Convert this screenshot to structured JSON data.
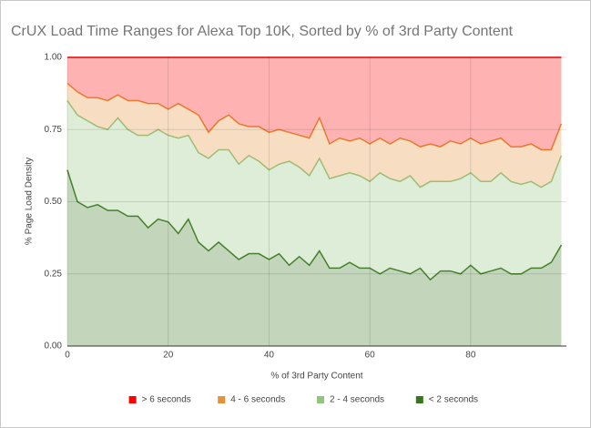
{
  "chart_data": {
    "type": "stacked-area",
    "title": "CrUX Load Time Ranges  for Alexa Top 10K, Sorted by % of 3rd Party Content",
    "x_label": "% of 3rd Party Content",
    "y_label": "% Page Load Density",
    "x": [
      0,
      2,
      4,
      6,
      8,
      10,
      12,
      14,
      16,
      18,
      20,
      22,
      24,
      26,
      28,
      30,
      32,
      34,
      36,
      38,
      40,
      42,
      44,
      46,
      48,
      50,
      52,
      54,
      56,
      58,
      60,
      62,
      64,
      66,
      68,
      70,
      72,
      74,
      76,
      78,
      80,
      82,
      84,
      86,
      88,
      90,
      92,
      94,
      96,
      98
    ],
    "xlim": [
      0,
      99
    ],
    "xticks": [
      0,
      20,
      40,
      60,
      80
    ],
    "ylim": [
      0,
      1
    ],
    "yticks": [
      {
        "value": 0,
        "label": "0.00"
      },
      {
        "value": 0.25,
        "label": "0.25"
      },
      {
        "value": 0.5,
        "label": "0.50"
      },
      {
        "value": 0.75,
        "label": "0.75"
      },
      {
        "value": 1,
        "label": "1.00"
      }
    ],
    "grid": true,
    "legend": "bottom",
    "series": [
      {
        "name": "< 2 seconds",
        "color": "#38761d",
        "values": [
          0.61,
          0.5,
          0.48,
          0.49,
          0.47,
          0.47,
          0.45,
          0.45,
          0.41,
          0.44,
          0.43,
          0.39,
          0.44,
          0.36,
          0.33,
          0.36,
          0.33,
          0.3,
          0.32,
          0.32,
          0.3,
          0.32,
          0.28,
          0.31,
          0.28,
          0.33,
          0.27,
          0.27,
          0.29,
          0.27,
          0.27,
          0.25,
          0.27,
          0.26,
          0.25,
          0.27,
          0.23,
          0.26,
          0.26,
          0.25,
          0.28,
          0.25,
          0.26,
          0.27,
          0.25,
          0.25,
          0.27,
          0.27,
          0.29,
          0.35
        ]
      },
      {
        "name": "2 - 4 seconds",
        "color": "#93c47d",
        "values": [
          0.24,
          0.3,
          0.3,
          0.27,
          0.28,
          0.32,
          0.3,
          0.28,
          0.32,
          0.31,
          0.3,
          0.33,
          0.29,
          0.31,
          0.32,
          0.32,
          0.35,
          0.33,
          0.34,
          0.32,
          0.31,
          0.31,
          0.36,
          0.31,
          0.31,
          0.32,
          0.31,
          0.32,
          0.31,
          0.32,
          0.3,
          0.35,
          0.31,
          0.31,
          0.34,
          0.28,
          0.34,
          0.31,
          0.31,
          0.33,
          0.32,
          0.32,
          0.31,
          0.33,
          0.32,
          0.31,
          0.3,
          0.28,
          0.28,
          0.31
        ]
      },
      {
        "name": "4 - 6 seconds",
        "color": "#e69138",
        "values": [
          0.06,
          0.08,
          0.08,
          0.1,
          0.1,
          0.08,
          0.1,
          0.12,
          0.11,
          0.09,
          0.09,
          0.12,
          0.09,
          0.13,
          0.09,
          0.1,
          0.12,
          0.14,
          0.1,
          0.12,
          0.13,
          0.12,
          0.1,
          0.11,
          0.13,
          0.14,
          0.12,
          0.13,
          0.11,
          0.13,
          0.13,
          0.12,
          0.12,
          0.15,
          0.12,
          0.14,
          0.13,
          0.12,
          0.14,
          0.12,
          0.12,
          0.13,
          0.14,
          0.12,
          0.12,
          0.13,
          0.13,
          0.13,
          0.11,
          0.11
        ]
      },
      {
        "name": "> 6 seconds",
        "color": "#ff0000",
        "values": [
          0.09,
          0.12,
          0.14,
          0.14,
          0.15,
          0.13,
          0.15,
          0.15,
          0.16,
          0.16,
          0.18,
          0.16,
          0.18,
          0.2,
          0.26,
          0.22,
          0.2,
          0.23,
          0.24,
          0.24,
          0.26,
          0.25,
          0.26,
          0.27,
          0.28,
          0.21,
          0.3,
          0.28,
          0.29,
          0.28,
          0.3,
          0.28,
          0.3,
          0.28,
          0.29,
          0.31,
          0.3,
          0.31,
          0.29,
          0.3,
          0.28,
          0.3,
          0.29,
          0.28,
          0.31,
          0.31,
          0.3,
          0.32,
          0.32,
          0.23
        ]
      }
    ]
  }
}
